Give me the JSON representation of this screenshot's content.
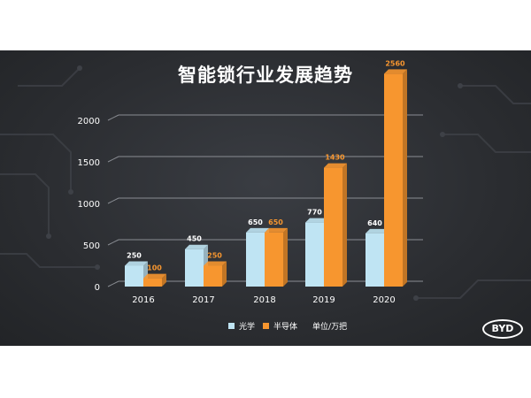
{
  "title": "智能锁行业发展趋势",
  "legend": {
    "unit": "单位/万把"
  },
  "logo": {
    "text": "BYD"
  },
  "colors": {
    "optical": "#bfe4f3",
    "semiconductor": "#f7962f",
    "background": "#2b2d31"
  },
  "chart_data": {
    "type": "bar",
    "title": "智能锁行业发展趋势",
    "categories": [
      "2016",
      "2017",
      "2018",
      "2019",
      "2020"
    ],
    "series": [
      {
        "name": "光学",
        "values": [
          250,
          450,
          650,
          770,
          640
        ],
        "color": "#bfe4f3"
      },
      {
        "name": "半导体",
        "values": [
          100,
          250,
          650,
          1430,
          2560
        ],
        "color": "#f7962f"
      }
    ],
    "yticks": [
      0,
      500,
      1000,
      1500,
      2000
    ],
    "ylim": [
      0,
      2560
    ],
    "xlabel": "",
    "ylabel": "",
    "unit": "单位/万把",
    "grid": true,
    "legend_position": "bottom"
  }
}
